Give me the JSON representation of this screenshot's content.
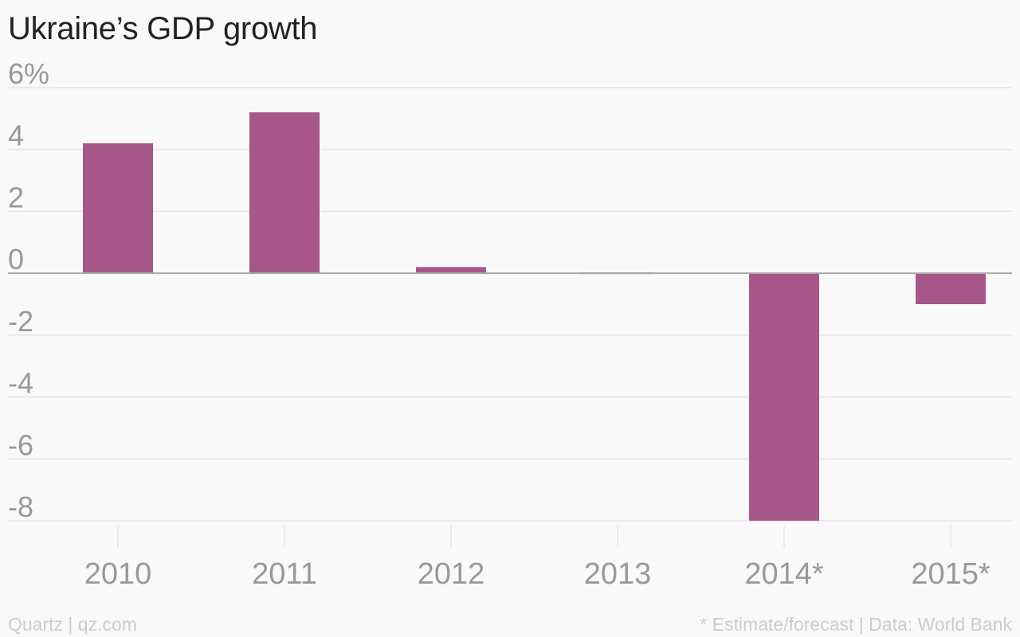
{
  "chart_data": {
    "type": "bar",
    "title": "Ukraine’s GDP growth",
    "categories": [
      "2010",
      "2011",
      "2012",
      "2013",
      "2014*",
      "2015*"
    ],
    "values": [
      4.2,
      5.2,
      0.2,
      0.0,
      -8.0,
      -1.0
    ],
    "ylim": [
      -8,
      6
    ],
    "yticks": [
      6,
      4,
      2,
      0,
      -2,
      -4,
      -6,
      -8
    ],
    "ytick_labels": [
      "6%",
      "4",
      "2",
      "0",
      "-2",
      "-4",
      "-6",
      "-8"
    ],
    "xlabel": "",
    "ylabel": "",
    "grid": true,
    "bar_color": "#a8578a",
    "grid_color": "#e6e6e6",
    "zero_line_color": "#aaaaaa"
  },
  "footer": {
    "source_left": "Quartz | qz.com",
    "note_right": "* Estimate/forecast | Data: World Bank"
  }
}
